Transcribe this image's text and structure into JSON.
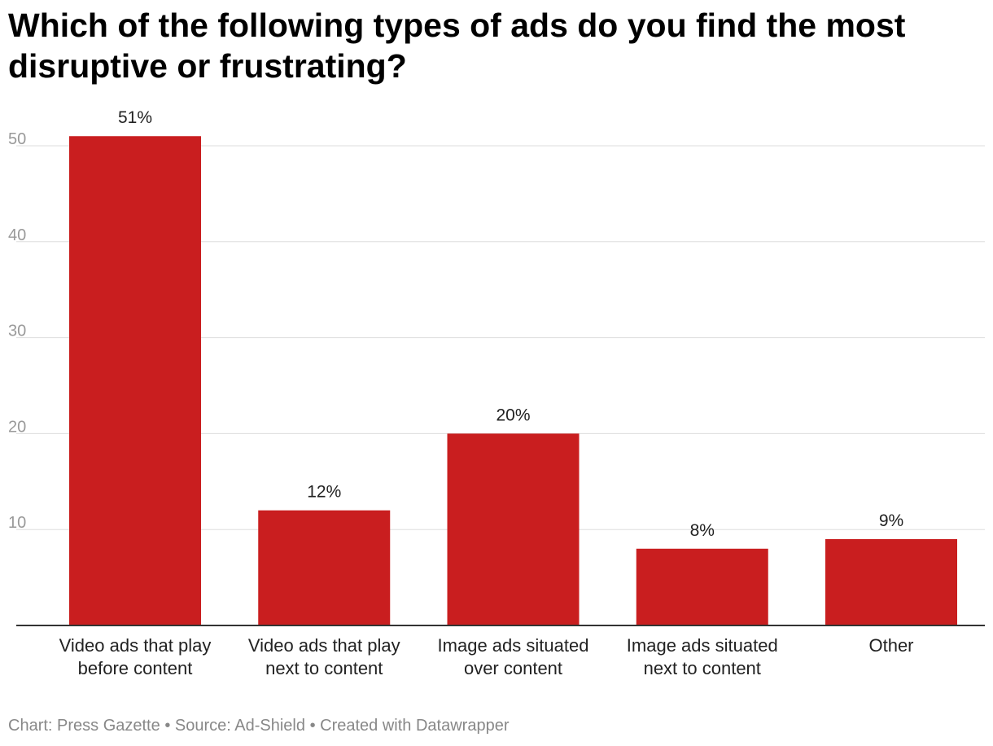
{
  "title": "Which of the following types of ads do you find the most disruptive or frustrating?",
  "chart_data": {
    "type": "bar",
    "title": "Which of the following types of ads do you find the most disruptive or frustrating?",
    "xlabel": "",
    "ylabel": "",
    "categories": [
      [
        "Video ads that play",
        "before content"
      ],
      [
        "Video ads that play",
        "next to content"
      ],
      [
        "Image ads situated",
        "over content"
      ],
      [
        "Image ads situated",
        "next to content"
      ],
      [
        "Other"
      ]
    ],
    "values": [
      51,
      12,
      20,
      8,
      9
    ],
    "value_labels": [
      "51%",
      "12%",
      "20%",
      "8%",
      "9%"
    ],
    "ylim": [
      0,
      55
    ],
    "yticks": [
      10,
      20,
      30,
      40,
      50
    ],
    "ytick_labels": [
      "10",
      "20",
      "30",
      "40",
      "50"
    ],
    "grid": true,
    "bar_color": "#c91e1f"
  },
  "footer": {
    "chart_credit": "Chart: Press Gazette",
    "source": "Source: Ad-Shield",
    "created_with": "Created with Datawrapper",
    "separator": "•"
  }
}
